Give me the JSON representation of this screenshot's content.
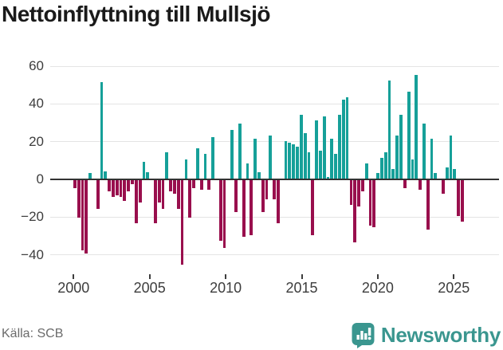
{
  "title": "Nettoinflyttning till Mullsjö",
  "footer": {
    "source": "Källa: SCB",
    "brand": "Newsworthy"
  },
  "colors": {
    "positive_bar": "#16a099",
    "negative_bar": "#990f4d",
    "grid": "#e4e4e4",
    "zero_line": "#333333",
    "axis_text": "#3d3d3d",
    "brand_teal": "#3a968f"
  },
  "chart_data": {
    "type": "bar",
    "title": "Nettoinflyttning till Mullsjö",
    "frequency": "quarterly",
    "x_start": "2000 Q1",
    "x_end": "2025 Q2",
    "grid": true,
    "legend": false,
    "ylim": [
      -48,
      62
    ],
    "y_ticks": [
      {
        "value": 60,
        "label": "60"
      },
      {
        "value": 40,
        "label": "40"
      },
      {
        "value": 20,
        "label": "20"
      },
      {
        "value": 0,
        "label": "0"
      },
      {
        "value": -20,
        "label": "−20"
      },
      {
        "value": -40,
        "label": "−40"
      }
    ],
    "x_ticks": [
      {
        "year": 2000,
        "label": "2000"
      },
      {
        "year": 2005,
        "label": "2005"
      },
      {
        "year": 2010,
        "label": "2010"
      },
      {
        "year": 2015,
        "label": "2015"
      },
      {
        "year": 2020,
        "label": "2020"
      },
      {
        "year": 2025,
        "label": "2025"
      }
    ],
    "values": [
      -4,
      -20,
      -37,
      -39,
      3,
      0,
      -15,
      51,
      4,
      -6,
      -9,
      -8,
      -9,
      -11,
      -6,
      -2,
      -23,
      -12,
      9,
      3.5,
      0,
      -23,
      -12,
      -15,
      14,
      -6,
      -7,
      -15,
      -45,
      10,
      -20,
      -4,
      16,
      -5,
      13,
      -5,
      22,
      0,
      -32,
      -36,
      0,
      26,
      -17,
      29,
      -30,
      8,
      -29,
      21,
      3.5,
      -17,
      -10,
      23,
      -10,
      -23,
      0,
      20,
      19,
      18,
      17,
      34,
      24,
      14,
      -29,
      31,
      15,
      33,
      1,
      21,
      13,
      34,
      42,
      43,
      -13,
      -33,
      -14,
      -6,
      8,
      -24,
      -25,
      3,
      11,
      14,
      52,
      5,
      23,
      34,
      -4,
      46,
      10,
      55,
      -5,
      29,
      -26,
      21,
      3,
      0,
      -7,
      6,
      23,
      5,
      -19,
      -22
    ]
  }
}
